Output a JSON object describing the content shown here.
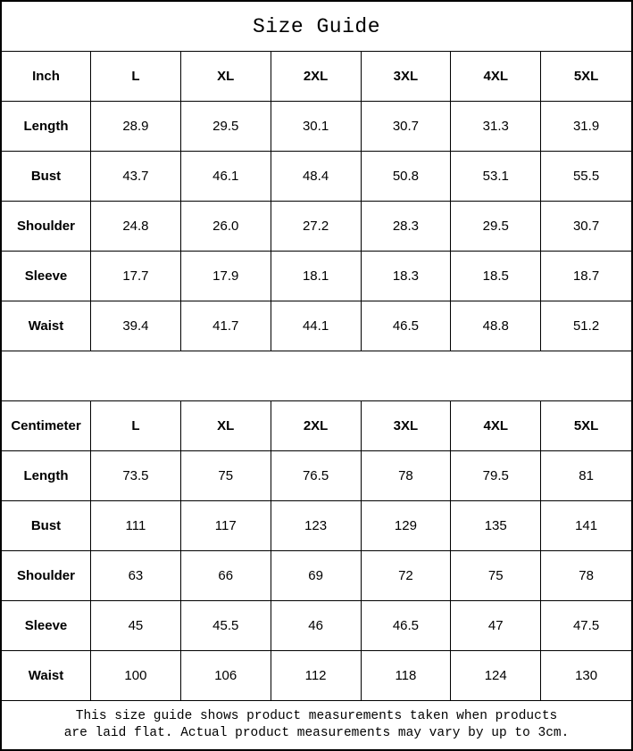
{
  "title": "Size Guide",
  "colors": {
    "border": "#000000",
    "background": "#ffffff",
    "text": "#000000"
  },
  "tables": [
    {
      "unit_label": "Inch",
      "sizes": [
        "L",
        "XL",
        "2XL",
        "3XL",
        "4XL",
        "5XL"
      ],
      "rows": [
        {
          "label": "Length",
          "values": [
            "28.9",
            "29.5",
            "30.1",
            "30.7",
            "31.3",
            "31.9"
          ]
        },
        {
          "label": "Bust",
          "values": [
            "43.7",
            "46.1",
            "48.4",
            "50.8",
            "53.1",
            "55.5"
          ]
        },
        {
          "label": "Shoulder",
          "values": [
            "24.8",
            "26.0",
            "27.2",
            "28.3",
            "29.5",
            "30.7"
          ]
        },
        {
          "label": "Sleeve",
          "values": [
            "17.7",
            "17.9",
            "18.1",
            "18.3",
            "18.5",
            "18.7"
          ]
        },
        {
          "label": "Waist",
          "values": [
            "39.4",
            "41.7",
            "44.1",
            "46.5",
            "48.8",
            "51.2"
          ]
        }
      ]
    },
    {
      "unit_label": "Centimeter",
      "sizes": [
        "L",
        "XL",
        "2XL",
        "3XL",
        "4XL",
        "5XL"
      ],
      "rows": [
        {
          "label": "Length",
          "values": [
            "73.5",
            "75",
            "76.5",
            "78",
            "79.5",
            "81"
          ]
        },
        {
          "label": "Bust",
          "values": [
            "111",
            "117",
            "123",
            "129",
            "135",
            "141"
          ]
        },
        {
          "label": "Shoulder",
          "values": [
            "63",
            "66",
            "69",
            "72",
            "75",
            "78"
          ]
        },
        {
          "label": "Sleeve",
          "values": [
            "45",
            "45.5",
            "46",
            "46.5",
            "47",
            "47.5"
          ]
        },
        {
          "label": "Waist",
          "values": [
            "100",
            "106",
            "112",
            "118",
            "124",
            "130"
          ]
        }
      ]
    }
  ],
  "footnote_lines": [
    "This size guide shows product measurements taken when products",
    "are laid flat. Actual product measurements may vary by up to 3cm."
  ]
}
